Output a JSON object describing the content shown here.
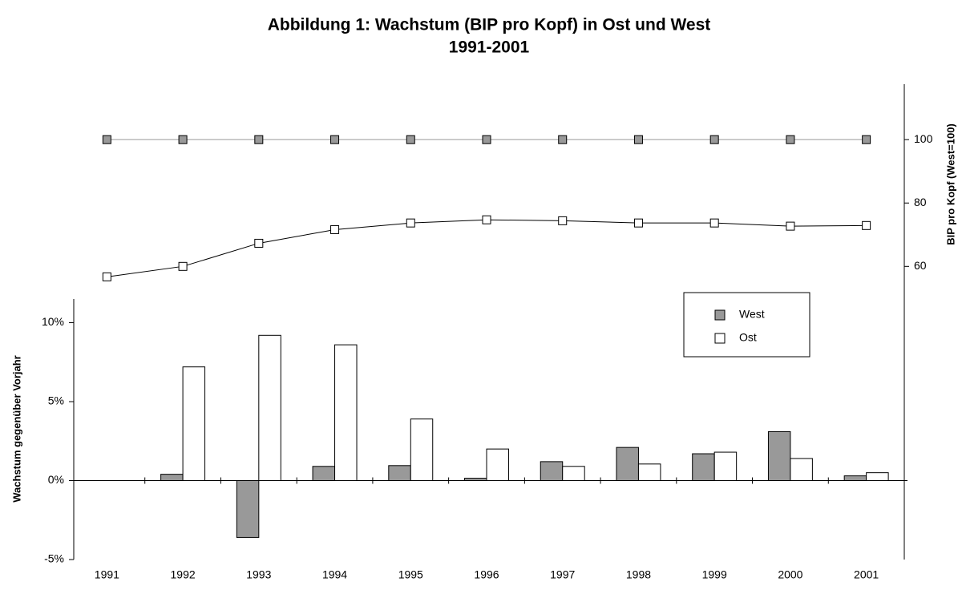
{
  "chart_data": {
    "type": "combo",
    "title": "Abbildung 1: Wachstum (BIP pro Kopf) in Ost und West",
    "subtitle": "1991-2001",
    "y_label": "Wachstum gegenüber Vorjahr",
    "y2_label": "BIP pro Kopf (West=100)",
    "categories": [
      "1991",
      "1992",
      "1993",
      "1994",
      "1995",
      "1996",
      "1997",
      "1998",
      "1999",
      "2000",
      "2001"
    ],
    "series": [
      {
        "name": "West",
        "color": "#999999",
        "values": [
          null,
          0.4,
          -3.6,
          0.9,
          0.95,
          0.15,
          1.2,
          2.1,
          1.7,
          3.1,
          0.3
        ]
      },
      {
        "name": "Ost",
        "color": "#ffffff",
        "values": [
          null,
          7.2,
          9.2,
          8.6,
          3.9,
          2.0,
          0.9,
          1.05,
          1.8,
          1.4,
          0.5
        ]
      }
    ],
    "lines": [
      {
        "color": "#999999",
        "axis": "y2",
        "values": [
          100,
          100,
          100,
          100,
          100,
          100,
          100,
          100,
          100,
          100,
          100
        ]
      },
      {
        "color": "#ffffff",
        "axis": "y2",
        "values": [
          56.7,
          60,
          67.3,
          71.6,
          73.7,
          74.7,
          74.4,
          73.7,
          73.7,
          72.7,
          72.9
        ]
      }
    ],
    "ylim": [
      -5,
      11.5
    ],
    "yticks": [
      {
        "value": -5,
        "label": "-5%"
      },
      {
        "value": 0,
        "label": "0%"
      },
      {
        "value": 5,
        "label": "5%"
      },
      {
        "value": 10,
        "label": "10%"
      }
    ],
    "y2lim": [
      -32.5,
      117.5
    ],
    "y2ticks": [
      60,
      80,
      100
    ],
    "legend": "upper-right"
  }
}
